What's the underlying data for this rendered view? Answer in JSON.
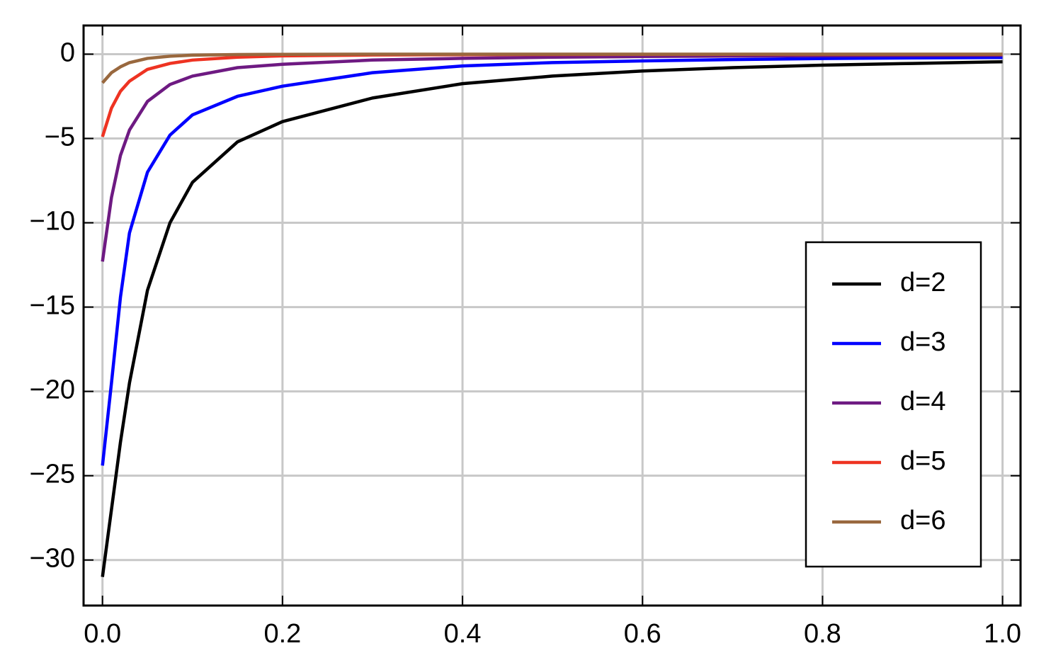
{
  "chart_data": {
    "type": "line",
    "x": [
      0,
      0.01,
      0.02,
      0.03,
      0.05,
      0.075,
      0.1,
      0.15,
      0.2,
      0.3,
      0.4,
      0.5,
      0.6,
      0.7,
      0.8,
      0.9,
      1.0
    ],
    "series": [
      {
        "name": "d=2",
        "color": "#000000",
        "values": [
          -31,
          -27,
          -23,
          -19.5,
          -14,
          -10,
          -7.6,
          -5.2,
          -4.0,
          -2.6,
          -1.75,
          -1.3,
          -1.0,
          -0.8,
          -0.65,
          -0.55,
          -0.45
        ]
      },
      {
        "name": "d=3",
        "color": "#0000ff",
        "values": [
          -24.4,
          -19.5,
          -14.4,
          -10.6,
          -7.0,
          -4.8,
          -3.6,
          -2.5,
          -1.9,
          -1.1,
          -0.7,
          -0.5,
          -0.4,
          -0.32,
          -0.26,
          -0.22,
          -0.2
        ]
      },
      {
        "name": "d=4",
        "color": "#6e1a82",
        "values": [
          -12.3,
          -8.5,
          -6,
          -4.5,
          -2.8,
          -1.8,
          -1.3,
          -0.8,
          -0.6,
          -0.35,
          -0.25,
          -0.18,
          -0.14,
          -0.11,
          -0.09,
          -0.08,
          -0.07
        ]
      },
      {
        "name": "d=5",
        "color": "#ee3322",
        "values": [
          -4.9,
          -3.2,
          -2.2,
          -1.6,
          -0.9,
          -0.55,
          -0.35,
          -0.18,
          -0.1,
          -0.05,
          -0.03,
          -0.02,
          -0.01,
          -0.01,
          -0.01,
          -0.01,
          -0.01
        ]
      },
      {
        "name": "d=6",
        "color": "#99683e",
        "values": [
          -1.7,
          -1.1,
          -0.75,
          -0.5,
          -0.25,
          -0.12,
          -0.06,
          -0.02,
          -0.01,
          0,
          0,
          0,
          0,
          0,
          0,
          0,
          0
        ]
      }
    ],
    "xlim": [
      -0.021,
      1.02
    ],
    "ylim": [
      -32.7,
      1.7
    ],
    "xticks": [
      {
        "value": 0,
        "label": "0.0"
      },
      0.2,
      0.4,
      0.6,
      0.8,
      {
        "value": 1,
        "label": "1.0"
      }
    ],
    "yticks": [
      0,
      {
        "value": -5,
        "label": "−5"
      },
      {
        "value": -10,
        "label": "−10"
      },
      {
        "value": -15,
        "label": "−15"
      },
      {
        "value": -20,
        "label": "−20"
      },
      {
        "value": -25,
        "label": "−25"
      },
      {
        "value": -30,
        "label": "−30"
      }
    ],
    "grid": true,
    "legend": "right"
  }
}
